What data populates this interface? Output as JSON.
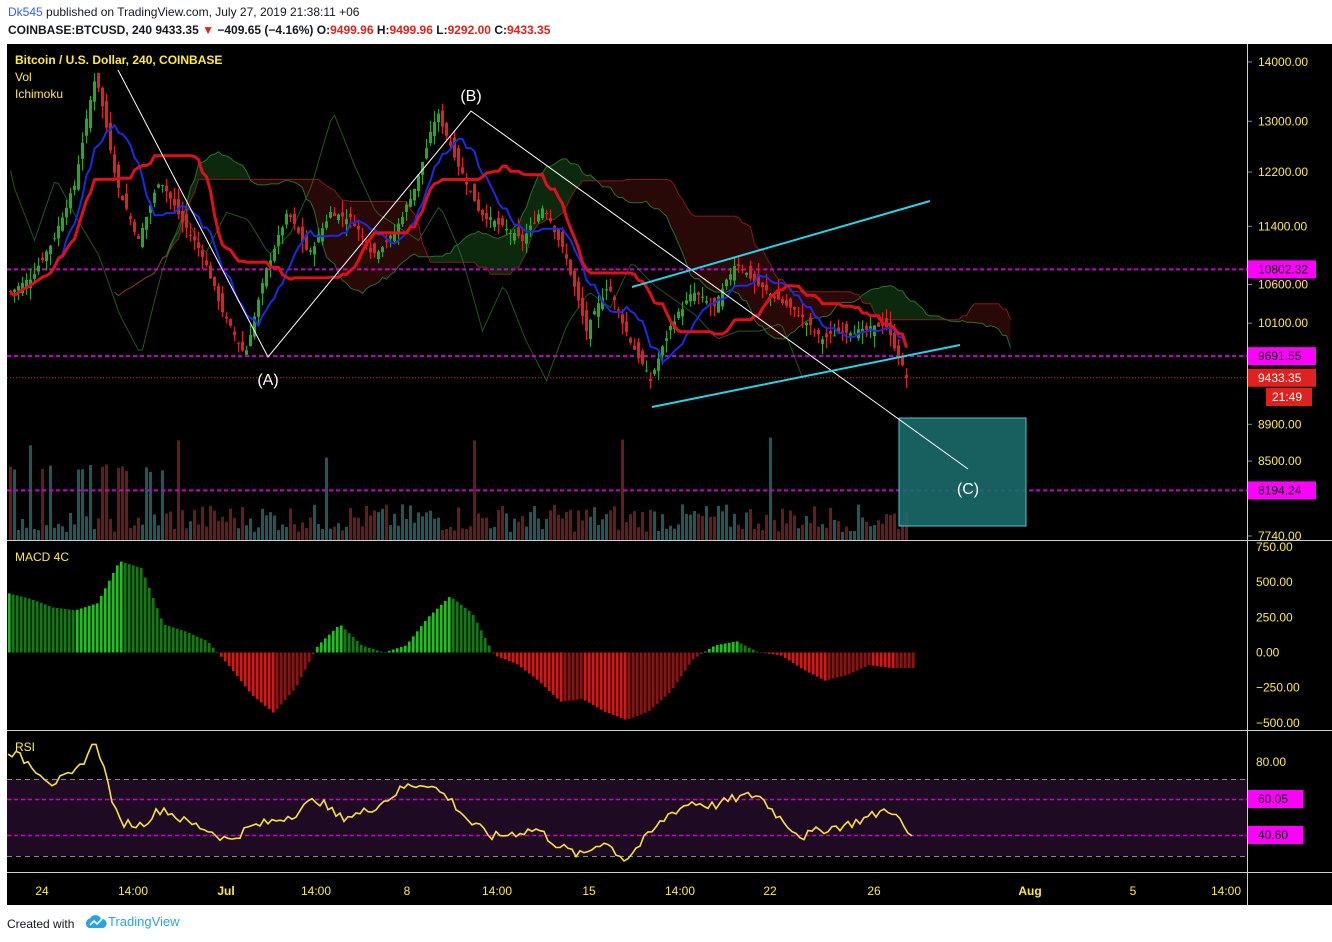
{
  "header": {
    "author": "Dk545",
    "published_text": "published on TradingView.com, July 27, 2019 21:38:11 +06",
    "symbol": "COINBASE:BTCUSD, 240",
    "last": "9433.35",
    "change": "−409.65 (−4.16%)",
    "o_label": "O:",
    "o": "9499.96",
    "h_label": "H:",
    "h": "9499.96",
    "l_label": "L:",
    "l": "9292.00",
    "c_label": "C:",
    "c": "9433.35"
  },
  "legend": {
    "title": "Bitcoin / U.S. Dollar, 240, COINBASE",
    "vol": "Vol",
    "ichimoku": "Ichimoku",
    "macd": "MACD 4C",
    "rsi": "RSI"
  },
  "footer": {
    "created_with": "Created with",
    "brand": "TradingView"
  },
  "colors": {
    "background": "#000000",
    "up": "#22ab25",
    "down": "#e02020",
    "tenkan": "#1a2be0",
    "kijun": "#e0101a",
    "level": "#cc00cc",
    "channel": "#29d3e6",
    "axis_text": "#ffeb3b",
    "macd_up": "#1aa11a",
    "macd_down": "#c01818",
    "rsi": "#f7e23a",
    "target_box": "#1b6a6a"
  },
  "chart_data": [
    {
      "type": "candlestick",
      "title": "Bitcoin / U.S. Dollar, 240, COINBASE",
      "y_scale": "log",
      "ylim": [
        7700,
        14200
      ],
      "y_ticks": [
        7740,
        8500,
        8900,
        10100,
        10600,
        11400,
        12200,
        13000,
        14000
      ],
      "y_tick_labels": [
        "7740.00",
        "8500.00",
        "8900.00",
        "10100.00",
        "10600.00",
        "11400.00",
        "12200.00",
        "13000.00",
        "14000.00"
      ],
      "x_ticks": [
        "24",
        "14:00",
        "Jul",
        "14:00",
        "8",
        "14:00",
        "15",
        "14:00",
        "22",
        "14:00",
        "26",
        "Aug",
        "5",
        "14:00"
      ],
      "price_labels": [
        {
          "value": 10802.32,
          "text": "10802.32",
          "color": "#ff00ff"
        },
        {
          "value": 9691.55,
          "text": "9691.55",
          "color": "#ff00ff"
        },
        {
          "value": 9433.35,
          "text": "9433.35",
          "color": "#e0211d"
        },
        {
          "value": 8194.24,
          "text": "8194.24",
          "color": "#ff00ff"
        }
      ],
      "countdown": "21:49",
      "horizontal_levels": [
        10802.32,
        9691.55,
        8194.24
      ],
      "waves": [
        {
          "label": "(A)",
          "price": 9700
        },
        {
          "label": "(B)",
          "price": 13150
        },
        {
          "label": "(C)",
          "price": 8600
        }
      ],
      "price_path": [
        10500,
        10700,
        11200,
        12000,
        13800,
        12000,
        11200,
        12100,
        11500,
        11000,
        10200,
        9700,
        10800,
        11600,
        11000,
        11600,
        11500,
        11000,
        11300,
        12000,
        13150,
        12300,
        11600,
        11400,
        11200,
        11700,
        11000,
        10000,
        10600,
        9900,
        9400,
        10100,
        10500,
        10300,
        10900,
        10600,
        10400,
        10200,
        9900,
        10000,
        10000,
        10100,
        9433
      ]
    },
    {
      "type": "bar",
      "title": "MACD 4C",
      "ylim": [
        -500,
        750
      ],
      "y_ticks": [
        -500,
        -250,
        0,
        250,
        500,
        750
      ],
      "y_tick_labels": [
        "−500.00",
        "−250.00",
        "0.00",
        "250.00",
        "500.00",
        "750.00"
      ],
      "values_path": [
        420,
        380,
        320,
        300,
        350,
        650,
        600,
        200,
        150,
        80,
        -100,
        -300,
        -430,
        -250,
        50,
        200,
        50,
        0,
        50,
        250,
        400,
        280,
        -20,
        -80,
        -200,
        -350,
        -330,
        -420,
        -480,
        -420,
        -280,
        -50,
        50,
        80,
        0,
        -20,
        -120,
        -200,
        -160,
        -90,
        -110,
        -110
      ]
    },
    {
      "type": "line",
      "title": "RSI",
      "ylim": [
        20,
        90
      ],
      "y_ticks": [
        40.6,
        60.05,
        80
      ],
      "y_tick_labels": [
        "40.60",
        "60.05",
        "80.00"
      ],
      "bands": [
        30,
        70
      ],
      "values_path": [
        85,
        78,
        68,
        72,
        90,
        48,
        46,
        55,
        48,
        44,
        38,
        45,
        48,
        52,
        60,
        50,
        52,
        58,
        66,
        68,
        60,
        47,
        40,
        42,
        44,
        35,
        30,
        38,
        28,
        40,
        52,
        58,
        56,
        60,
        62,
        50,
        40,
        44,
        46,
        50,
        55,
        39
      ]
    }
  ]
}
